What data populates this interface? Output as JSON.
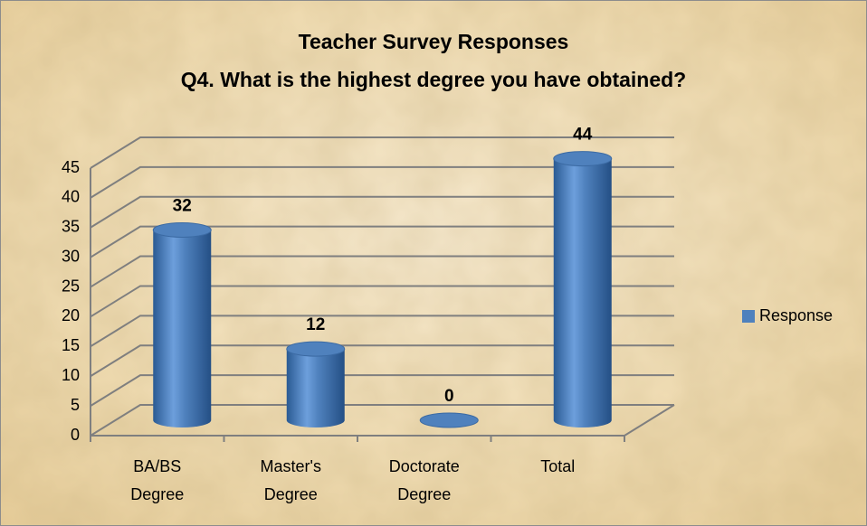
{
  "chart_data": {
    "type": "bar3d",
    "title": "Teacher Survey Responses",
    "subtitle": "Q4.  What is the highest degree you have obtained?",
    "categories": [
      "BA/BS Degree",
      "Master's Degree",
      "Doctorate Degree",
      "Total"
    ],
    "series": [
      {
        "name": "Response",
        "color": "#4f81bd",
        "values": [
          32,
          12,
          0,
          44
        ]
      }
    ],
    "ylim": [
      0,
      45
    ],
    "yticks": [
      0,
      5,
      10,
      15,
      20,
      25,
      30,
      35,
      40,
      45
    ],
    "grid": true,
    "legend": "right"
  }
}
